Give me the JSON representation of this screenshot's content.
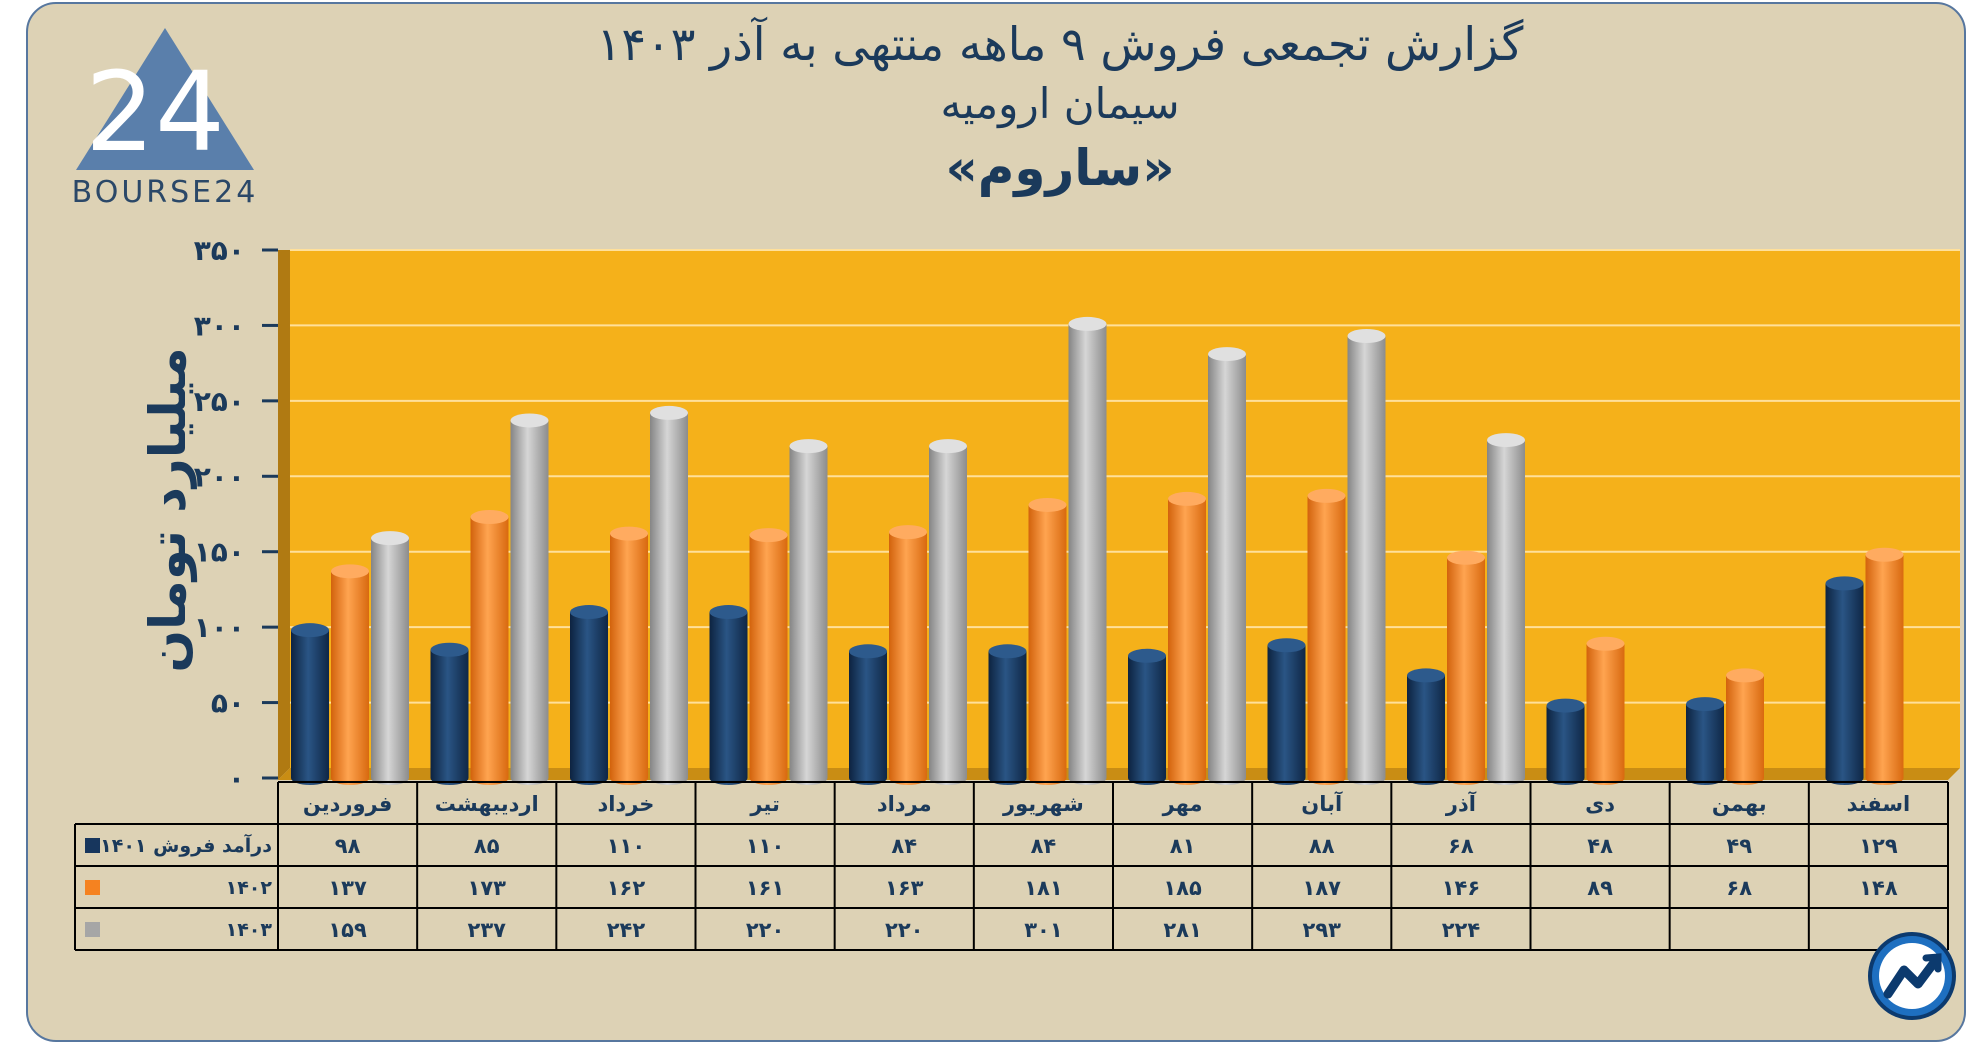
{
  "logo": {
    "text": "BOURSE24",
    "mark": "24"
  },
  "chart_data": {
    "type": "bar",
    "title": "گزارش تجمعی فروش ۹ ماهه منتهی به آذر ۱۴۰۳",
    "subtitle": "سیمان ارومیه",
    "subtitle2": "«ساروم»",
    "ylabel": "میلیارد تومان",
    "ylim": [
      0,
      350
    ],
    "yticks": [
      0,
      50,
      100,
      150,
      200,
      250,
      300,
      350
    ],
    "ytick_labels": [
      "۰",
      "۵۰",
      "۱۰۰",
      "۱۵۰",
      "۲۰۰",
      "۲۵۰",
      "۳۰۰",
      "۳۵۰"
    ],
    "categories": [
      "فروردین",
      "اردیبهشت",
      "خرداد",
      "تیر",
      "مرداد",
      "شهریور",
      "مهر",
      "آبان",
      "آذر",
      "دی",
      "بهمن",
      "اسفند"
    ],
    "series": [
      {
        "name": "درآمد فروش ۱۴۰۱",
        "color": "#17365d",
        "values": [
          98,
          85,
          110,
          110,
          84,
          84,
          81,
          88,
          68,
          48,
          49,
          129
        ],
        "labels": [
          "۹۸",
          "۸۵",
          "۱۱۰",
          "۱۱۰",
          "۸۴",
          "۸۴",
          "۸۱",
          "۸۸",
          "۶۸",
          "۴۸",
          "۴۹",
          "۱۲۹"
        ]
      },
      {
        "name": "۱۴۰۲",
        "color": "#f58220",
        "values": [
          137,
          173,
          162,
          161,
          163,
          181,
          185,
          187,
          146,
          89,
          68,
          148
        ],
        "labels": [
          "۱۳۷",
          "۱۷۳",
          "۱۶۲",
          "۱۶۱",
          "۱۶۳",
          "۱۸۱",
          "۱۸۵",
          "۱۸۷",
          "۱۴۶",
          "۸۹",
          "۶۸",
          "۱۴۸"
        ]
      },
      {
        "name": "۱۴۰۳",
        "color": "#a6a6a6",
        "values": [
          159,
          237,
          242,
          220,
          220,
          301,
          281,
          293,
          224,
          null,
          null,
          null
        ],
        "labels": [
          "۱۵۹",
          "۲۳۷",
          "۲۴۲",
          "۲۲۰",
          "۲۲۰",
          "۳۰۱",
          "۲۸۱",
          "۲۹۳",
          "۲۲۴",
          "",
          "",
          ""
        ]
      }
    ],
    "plot_bg": "#f5b11a",
    "gridlines": true,
    "legend": "data-table-below"
  }
}
